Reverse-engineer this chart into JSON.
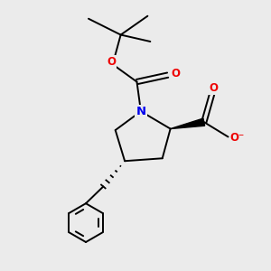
{
  "bg_color": "#ebebeb",
  "atom_colors": {
    "N": "#0000ee",
    "O": "#ee0000",
    "C": "#000000"
  },
  "bond_color": "#000000",
  "bond_width": 1.4,
  "figsize": [
    3.0,
    3.0
  ],
  "dpi": 100,
  "xlim": [
    0,
    10
  ],
  "ylim": [
    0,
    10
  ]
}
